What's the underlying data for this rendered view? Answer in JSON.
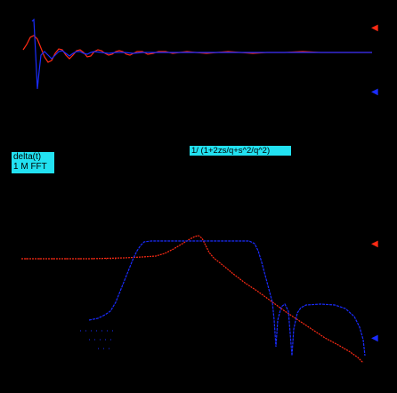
{
  "colors": {
    "background": "#000000",
    "red": "#ff2a14",
    "blue": "#1a2cff",
    "label_bg": "#22e1f1"
  },
  "input_box": {
    "line1": "delta(t)",
    "line2": "1 M FFT"
  },
  "formula_box": {
    "text": "1/ (1+2zs/q+s^2/q^2)"
  },
  "markers": {
    "red_symbol": "◀",
    "blue_symbol": "◀"
  }
}
